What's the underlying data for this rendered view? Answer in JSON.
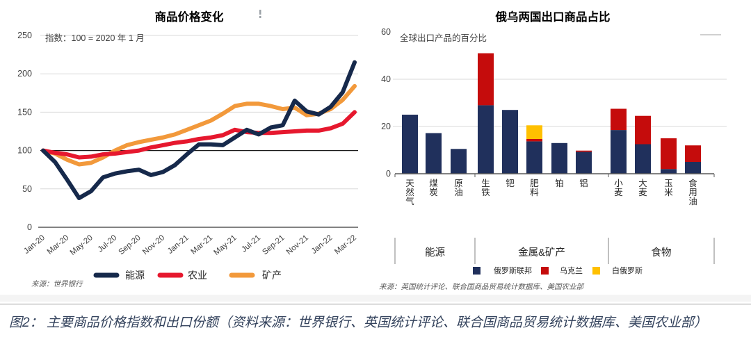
{
  "caption": "图2： 主要商品价格指数和出口份额（资料来源：世界银行、英国统计评论、联合国商品贸易统计数据库、美国农业部）",
  "colors": {
    "navy": "#1E3055",
    "line_red": "#E6182E",
    "bar_red": "#C50C0C",
    "orange": "#F2993B",
    "yellow": "#FFC000",
    "grid": "#D9D9D9",
    "axis": "#595959",
    "reference_line": "#1A1A1A",
    "tick_text": "#404040",
    "caption_text": "#33425C"
  },
  "chart_data": [
    {
      "type": "line",
      "title": "商品价格变化",
      "subtitle": "指数：100 = 2020 年 1 月",
      "source": "来源：世界银行",
      "x": [
        "Jan-20",
        "Feb-20",
        "Mar-20",
        "Apr-20",
        "May-20",
        "Jun-20",
        "Jul-20",
        "Aug-20",
        "Sep-20",
        "Oct-20",
        "Nov-20",
        "Dec-20",
        "Jan-21",
        "Feb-21",
        "Mar-21",
        "Apr-21",
        "May-21",
        "Jun-21",
        "Jul-21",
        "Aug-21",
        "Sep-21",
        "Oct-21",
        "Nov-21",
        "Dec-21",
        "Jan-22",
        "Feb-22",
        "Mar-22"
      ],
      "x_ticks_shown": [
        "Jan-20",
        "Mar-20",
        "May-20",
        "Jul-20",
        "Sep-20",
        "Nov-20",
        "Jan-21",
        "Mar-21",
        "May-21",
        "Jul-21",
        "Sep-21",
        "Nov-21",
        "Jan-22",
        "Mar-22"
      ],
      "ylim": [
        0,
        250
      ],
      "yticks": [
        0,
        50,
        100,
        150,
        200,
        250
      ],
      "reference_line": 100,
      "grid": true,
      "legend_position": "bottom",
      "series": [
        {
          "name": "能源",
          "color": "#16294B",
          "values": [
            100,
            85,
            62,
            38,
            47,
            65,
            70,
            73,
            75,
            68,
            72,
            81,
            95,
            108,
            108,
            107,
            117,
            127,
            121,
            130,
            133,
            165,
            151,
            147,
            157,
            176,
            215
          ]
        },
        {
          "name": "农业",
          "color": "#E6182E",
          "values": [
            100,
            97,
            95,
            91,
            92,
            95,
            96,
            98,
            100,
            104,
            107,
            110,
            112,
            115,
            117,
            120,
            127,
            124,
            123,
            123,
            124,
            125,
            126,
            126,
            129,
            135,
            150
          ]
        },
        {
          "name": "矿产",
          "color": "#F2993B",
          "values": [
            100,
            96,
            88,
            82,
            84,
            91,
            100,
            107,
            111,
            114,
            117,
            121,
            127,
            133,
            139,
            148,
            158,
            161,
            161,
            158,
            154,
            156,
            146,
            148,
            154,
            166,
            184
          ]
        }
      ]
    },
    {
      "type": "bar",
      "stacked": true,
      "title": "俄乌两国出口商品占比",
      "subtitle": "全球出口产品的百分比",
      "source": "来源：英国统计评论、联合国商品贸易统计数据库、美国农业部",
      "categories": [
        "天然气",
        "煤炭",
        "原油",
        "生铁",
        "钯",
        "肥料",
        "铂",
        "铝",
        "小麦",
        "大麦",
        "玉米",
        "食用油"
      ],
      "groups": [
        {
          "label": "能源",
          "from": 0,
          "to": 2
        },
        {
          "label": "金属&矿产",
          "from": 3,
          "to": 7
        },
        {
          "label": "食物",
          "from": 8,
          "to": 11
        }
      ],
      "ylim": [
        0,
        60
      ],
      "yticks": [
        0,
        20,
        40,
        60
      ],
      "grid": true,
      "legend_position": "bottom",
      "series": [
        {
          "name": "俄罗斯联邦",
          "color": "#20305C",
          "values": [
            25,
            17.2,
            10.5,
            29,
            27,
            13.7,
            13,
            9.3,
            18.5,
            12.5,
            2,
            5
          ]
        },
        {
          "name": "乌克兰",
          "color": "#C50C0C",
          "values": [
            0,
            0,
            0,
            22,
            0,
            1,
            0,
            0.5,
            9,
            12,
            13,
            7
          ]
        },
        {
          "name": "白俄罗斯",
          "color": "#FFC000",
          "values": [
            0,
            0,
            0,
            0,
            0,
            5.8,
            0,
            0,
            0,
            0,
            0,
            0
          ]
        }
      ]
    }
  ]
}
